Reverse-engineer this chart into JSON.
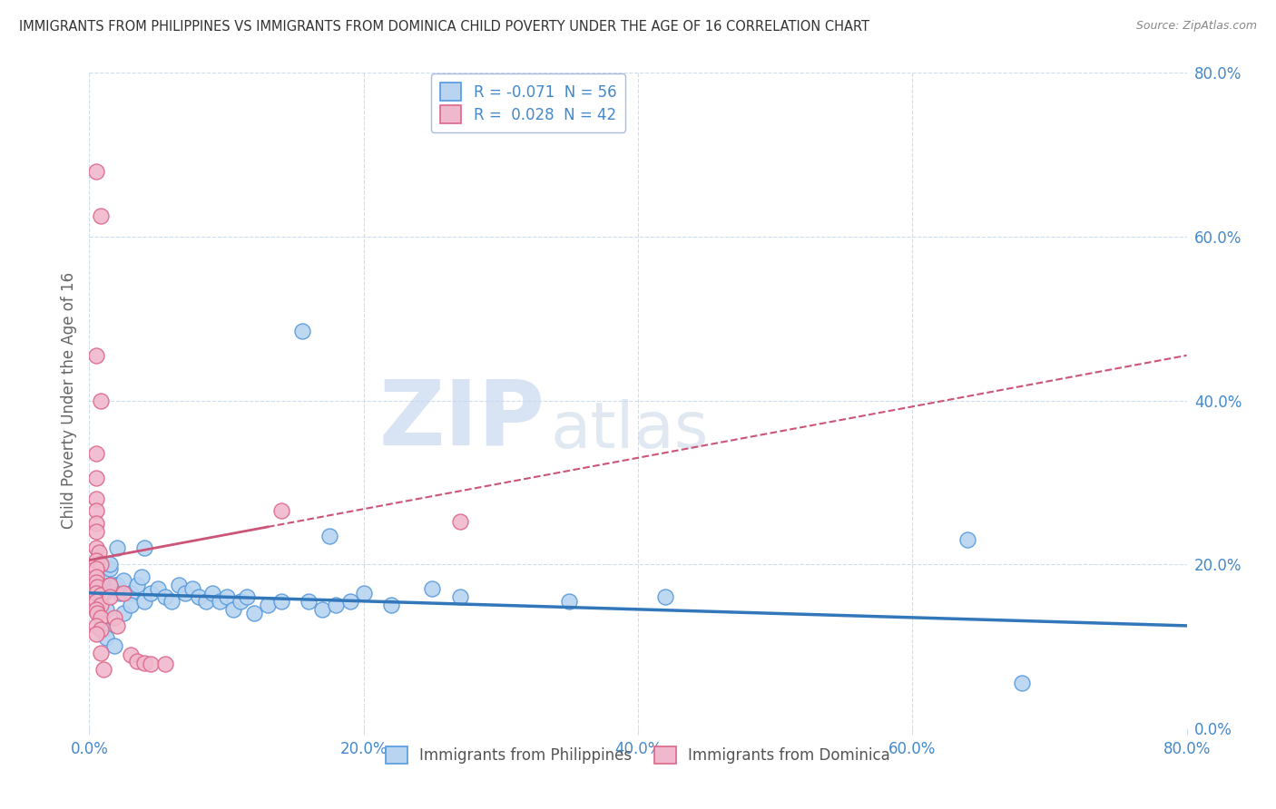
{
  "title": "IMMIGRANTS FROM PHILIPPINES VS IMMIGRANTS FROM DOMINICA CHILD POVERTY UNDER THE AGE OF 16 CORRELATION CHART",
  "source": "Source: ZipAtlas.com",
  "ylabel": "Child Poverty Under the Age of 16",
  "legend_blue_label": "Immigrants from Philippines",
  "legend_pink_label": "Immigrants from Dominica",
  "R_blue": -0.071,
  "N_blue": 56,
  "R_pink": 0.028,
  "N_pink": 42,
  "xlim": [
    0.0,
    0.8
  ],
  "ylim": [
    0.0,
    0.8
  ],
  "ytick_labels": [
    "0.0%",
    "20.0%",
    "40.0%",
    "60.0%",
    "80.0%"
  ],
  "ytick_values": [
    0.0,
    0.2,
    0.4,
    0.6,
    0.8
  ],
  "xtick_labels": [
    "0.0%",
    "20.0%",
    "40.0%",
    "60.0%",
    "80.0%"
  ],
  "xtick_values": [
    0.0,
    0.2,
    0.4,
    0.6,
    0.8
  ],
  "blue_fill": "#b8d4f0",
  "pink_fill": "#f0b8cc",
  "blue_edge": "#5599dd",
  "pink_edge": "#dd6688",
  "blue_line_color": "#3377bb",
  "pink_line_color": "#cc5577",
  "axis_tick_color": "#4488cc",
  "grid_color": "#ccddee",
  "title_color": "#333333",
  "source_color": "#888888",
  "ylabel_color": "#666666",
  "watermark_zip_color": "#c8d8f0",
  "watermark_atlas_color": "#c8d8e8",
  "blue_trend": [
    0.165,
    0.125
  ],
  "pink_trend": [
    0.205,
    0.455
  ],
  "blue_points": [
    [
      0.005,
      0.155
    ],
    [
      0.008,
      0.175
    ],
    [
      0.008,
      0.145
    ],
    [
      0.01,
      0.165
    ],
    [
      0.01,
      0.12
    ],
    [
      0.01,
      0.19
    ],
    [
      0.012,
      0.11
    ],
    [
      0.012,
      0.145
    ],
    [
      0.015,
      0.175
    ],
    [
      0.015,
      0.195
    ],
    [
      0.015,
      0.2
    ],
    [
      0.018,
      0.175
    ],
    [
      0.018,
      0.1
    ],
    [
      0.02,
      0.22
    ],
    [
      0.02,
      0.175
    ],
    [
      0.022,
      0.165
    ],
    [
      0.025,
      0.18
    ],
    [
      0.025,
      0.14
    ],
    [
      0.03,
      0.165
    ],
    [
      0.03,
      0.15
    ],
    [
      0.035,
      0.175
    ],
    [
      0.038,
      0.185
    ],
    [
      0.04,
      0.22
    ],
    [
      0.04,
      0.155
    ],
    [
      0.045,
      0.165
    ],
    [
      0.05,
      0.17
    ],
    [
      0.055,
      0.16
    ],
    [
      0.06,
      0.155
    ],
    [
      0.065,
      0.175
    ],
    [
      0.07,
      0.165
    ],
    [
      0.075,
      0.17
    ],
    [
      0.08,
      0.16
    ],
    [
      0.085,
      0.155
    ],
    [
      0.09,
      0.165
    ],
    [
      0.095,
      0.155
    ],
    [
      0.1,
      0.16
    ],
    [
      0.105,
      0.145
    ],
    [
      0.11,
      0.155
    ],
    [
      0.115,
      0.16
    ],
    [
      0.12,
      0.14
    ],
    [
      0.13,
      0.15
    ],
    [
      0.14,
      0.155
    ],
    [
      0.155,
      0.485
    ],
    [
      0.16,
      0.155
    ],
    [
      0.17,
      0.145
    ],
    [
      0.175,
      0.235
    ],
    [
      0.18,
      0.15
    ],
    [
      0.19,
      0.155
    ],
    [
      0.2,
      0.165
    ],
    [
      0.22,
      0.15
    ],
    [
      0.25,
      0.17
    ],
    [
      0.27,
      0.16
    ],
    [
      0.35,
      0.155
    ],
    [
      0.42,
      0.16
    ],
    [
      0.64,
      0.23
    ],
    [
      0.68,
      0.055
    ]
  ],
  "pink_points": [
    [
      0.005,
      0.68
    ],
    [
      0.008,
      0.625
    ],
    [
      0.005,
      0.455
    ],
    [
      0.008,
      0.4
    ],
    [
      0.005,
      0.335
    ],
    [
      0.005,
      0.305
    ],
    [
      0.005,
      0.28
    ],
    [
      0.005,
      0.265
    ],
    [
      0.005,
      0.25
    ],
    [
      0.005,
      0.24
    ],
    [
      0.005,
      0.22
    ],
    [
      0.007,
      0.215
    ],
    [
      0.005,
      0.205
    ],
    [
      0.008,
      0.2
    ],
    [
      0.005,
      0.195
    ],
    [
      0.005,
      0.185
    ],
    [
      0.005,
      0.178
    ],
    [
      0.006,
      0.172
    ],
    [
      0.005,
      0.165
    ],
    [
      0.008,
      0.162
    ],
    [
      0.005,
      0.155
    ],
    [
      0.008,
      0.15
    ],
    [
      0.005,
      0.145
    ],
    [
      0.006,
      0.14
    ],
    [
      0.008,
      0.135
    ],
    [
      0.005,
      0.125
    ],
    [
      0.008,
      0.12
    ],
    [
      0.005,
      0.115
    ],
    [
      0.015,
      0.175
    ],
    [
      0.015,
      0.16
    ],
    [
      0.018,
      0.135
    ],
    [
      0.02,
      0.125
    ],
    [
      0.025,
      0.165
    ],
    [
      0.03,
      0.09
    ],
    [
      0.035,
      0.082
    ],
    [
      0.04,
      0.08
    ],
    [
      0.045,
      0.078
    ],
    [
      0.055,
      0.078
    ],
    [
      0.14,
      0.265
    ],
    [
      0.27,
      0.252
    ],
    [
      0.008,
      0.092
    ],
    [
      0.01,
      0.072
    ]
  ]
}
